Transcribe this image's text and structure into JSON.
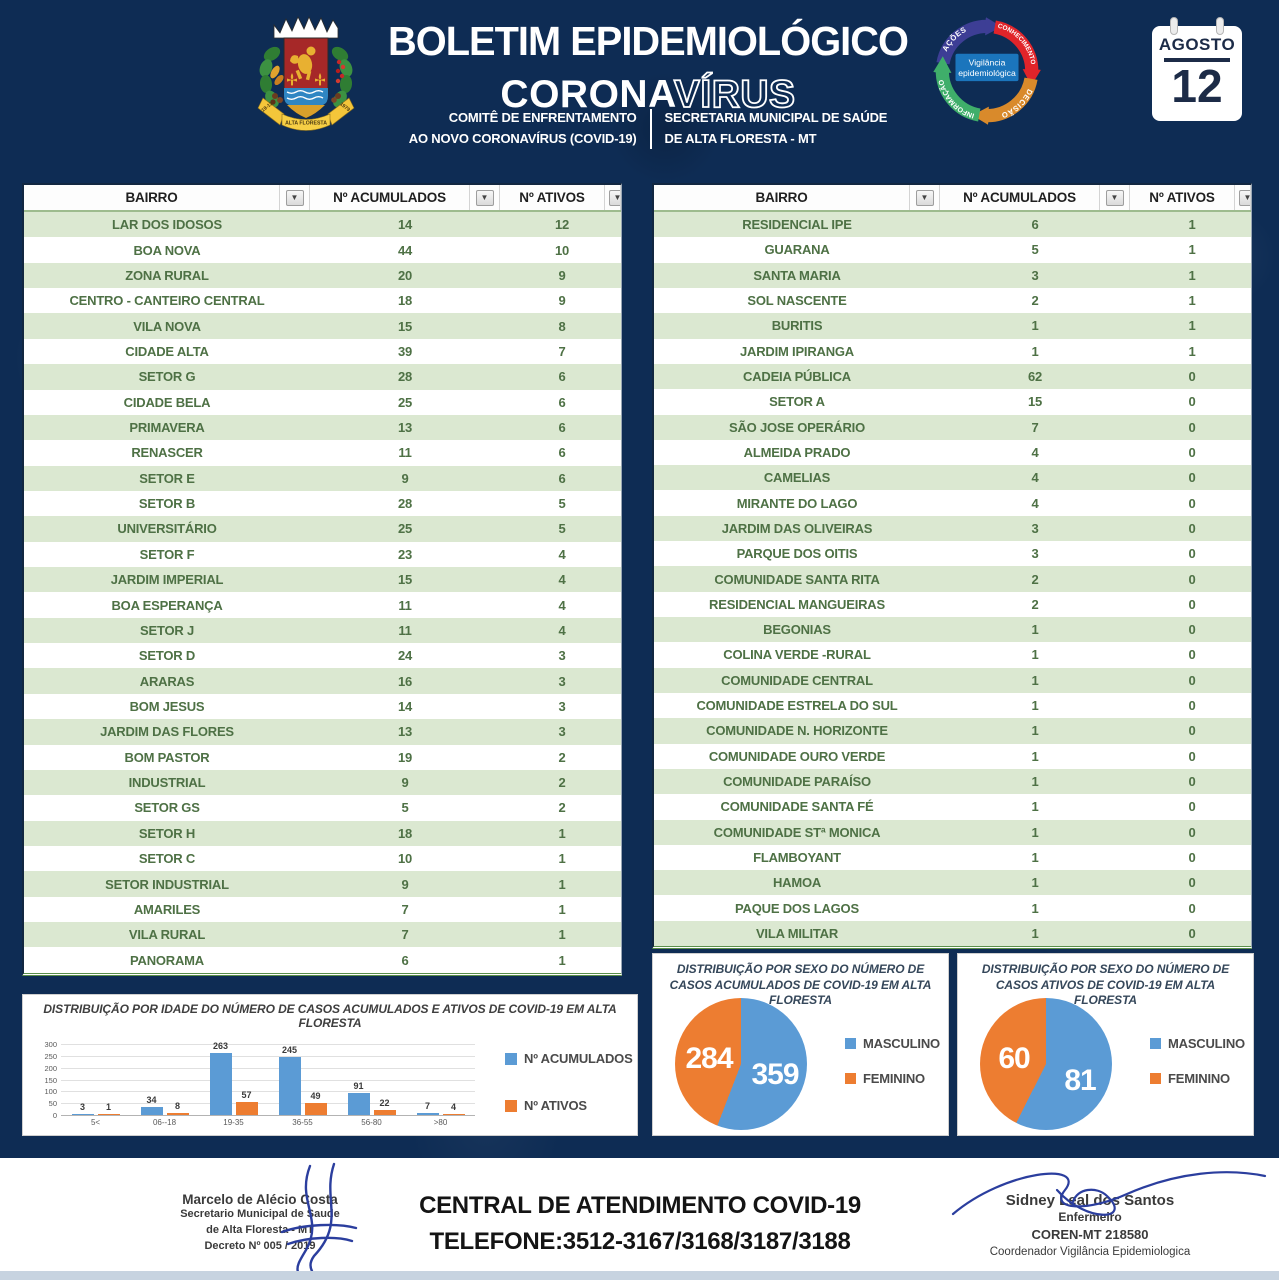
{
  "colors": {
    "background_navy": "#0e2c54",
    "table_row_green": "#dbe8d1",
    "table_text_green": "#4e7145",
    "table_border_green": "#5a8f4a",
    "accent_blue": "#5b9bd5",
    "accent_orange": "#ed7d31",
    "signature_blue": "#2b3e9e",
    "footer_strip": "#c7d3e0",
    "calendar_text": "#1c2b47"
  },
  "header": {
    "title": "BOLETIM EPIDEMIOLÓGICO",
    "subtitle_solid": "CORONA",
    "subtitle_outline": "VÍRUS",
    "committee_line1": "COMITÊ DE ENFRENTAMENTO",
    "committee_line2": "AO NOVO CORONAVÍRUS (COVID-19)",
    "secretary_line1": "SECRETARIA MUNICIPAL DE SAÚDE",
    "secretary_line2": "DE ALTA FLORESTA - MT",
    "crest": {
      "ribbon_text": "ALTA FLORESTA",
      "ribbon_left": "19-12",
      "ribbon_right": "1979"
    },
    "cycle_logo": {
      "center_line1": "Vigilância",
      "center_line2": "epidemiológica",
      "center_color": "#1b75bc",
      "arrows": [
        {
          "label": "AÇÕES",
          "color": "#3d3e95"
        },
        {
          "label": "CONHECIMENTO",
          "color": "#e1242a"
        },
        {
          "label": "DECISÃO",
          "color": "#d98a2b"
        },
        {
          "label": "INFORMAÇÃO",
          "color": "#3fae6a"
        }
      ]
    },
    "calendar": {
      "month": "AGOSTO",
      "day": "12"
    }
  },
  "tables": {
    "headers": [
      "BAIRRO",
      "Nº ACUMULADOS",
      "Nº ATIVOS"
    ],
    "filter_icon": "▼",
    "left_rows": [
      [
        "LAR DOS IDOSOS",
        "14",
        "12"
      ],
      [
        "BOA NOVA",
        "44",
        "10"
      ],
      [
        "ZONA RURAL",
        "20",
        "9"
      ],
      [
        "CENTRO - CANTEIRO CENTRAL",
        "18",
        "9"
      ],
      [
        "VILA NOVA",
        "15",
        "8"
      ],
      [
        "CIDADE ALTA",
        "39",
        "7"
      ],
      [
        "SETOR G",
        "28",
        "6"
      ],
      [
        "CIDADE BELA",
        "25",
        "6"
      ],
      [
        "PRIMAVERA",
        "13",
        "6"
      ],
      [
        "RENASCER",
        "11",
        "6"
      ],
      [
        "SETOR E",
        "9",
        "6"
      ],
      [
        "SETOR B",
        "28",
        "5"
      ],
      [
        "UNIVERSITÁRIO",
        "25",
        "5"
      ],
      [
        "SETOR F",
        "23",
        "4"
      ],
      [
        "JARDIM IMPERIAL",
        "15",
        "4"
      ],
      [
        "BOA ESPERANÇA",
        "11",
        "4"
      ],
      [
        "SETOR J",
        "11",
        "4"
      ],
      [
        "SETOR D",
        "24",
        "3"
      ],
      [
        "ARARAS",
        "16",
        "3"
      ],
      [
        "BOM JESUS",
        "14",
        "3"
      ],
      [
        "JARDIM DAS FLORES",
        "13",
        "3"
      ],
      [
        "BOM PASTOR",
        "19",
        "2"
      ],
      [
        "INDUSTRIAL",
        "9",
        "2"
      ],
      [
        "SETOR GS",
        "5",
        "2"
      ],
      [
        "SETOR H",
        "18",
        "1"
      ],
      [
        "SETOR C",
        "10",
        "1"
      ],
      [
        "SETOR INDUSTRIAL",
        "9",
        "1"
      ],
      [
        "AMARILES",
        "7",
        "1"
      ],
      [
        "VILA RURAL",
        "7",
        "1"
      ],
      [
        "PANORAMA",
        "6",
        "1"
      ]
    ],
    "right_rows": [
      [
        "RESIDENCIAL IPE",
        "6",
        "1"
      ],
      [
        "GUARANA",
        "5",
        "1"
      ],
      [
        "SANTA MARIA",
        "3",
        "1"
      ],
      [
        "SOL NASCENTE",
        "2",
        "1"
      ],
      [
        "BURITIS",
        "1",
        "1"
      ],
      [
        "JARDIM IPIRANGA",
        "1",
        "1"
      ],
      [
        "CADEIA PÚBLICA",
        "62",
        "0"
      ],
      [
        "SETOR A",
        "15",
        "0"
      ],
      [
        "SÃO JOSE OPERÁRIO",
        "7",
        "0"
      ],
      [
        "ALMEIDA PRADO",
        "4",
        "0"
      ],
      [
        "CAMELIAS",
        "4",
        "0"
      ],
      [
        "MIRANTE DO LAGO",
        "4",
        "0"
      ],
      [
        "JARDIM DAS OLIVEIRAS",
        "3",
        "0"
      ],
      [
        "PARQUE DOS OITIS",
        "3",
        "0"
      ],
      [
        "COMUNIDADE SANTA RITA",
        "2",
        "0"
      ],
      [
        "RESIDENCIAL MANGUEIRAS",
        "2",
        "0"
      ],
      [
        "BEGONIAS",
        "1",
        "0"
      ],
      [
        "COLINA VERDE -RURAL",
        "1",
        "0"
      ],
      [
        "COMUNIDADE CENTRAL",
        "1",
        "0"
      ],
      [
        "COMUNIDADE ESTRELA DO SUL",
        "1",
        "0"
      ],
      [
        "COMUNIDADE N. HORIZONTE",
        "1",
        "0"
      ],
      [
        "COMUNIDADE OURO VERDE",
        "1",
        "0"
      ],
      [
        "COMUNIDADE PARAÍSO",
        "1",
        "0"
      ],
      [
        "COMUNIDADE SANTA FÉ",
        "1",
        "0"
      ],
      [
        "COMUNIDADE STª MONICA",
        "1",
        "0"
      ],
      [
        "FLAMBOYANT",
        "1",
        "0"
      ],
      [
        "HAMOA",
        "1",
        "0"
      ],
      [
        "PAQUE DOS LAGOS",
        "1",
        "0"
      ],
      [
        "VILA MILITAR",
        "1",
        "0"
      ]
    ]
  },
  "chart_data": [
    {
      "type": "bar",
      "title": "DISTRIBUIÇÃO POR IDADE DO NÚMERO DE CASOS ACUMULADOS E ATIVOS DE COVID-19 EM ALTA FLORESTA",
      "categories": [
        "5<",
        "06--18",
        "19-35",
        "36-55",
        "56-80",
        ">80"
      ],
      "series": [
        {
          "name": "Nº ACUMULADOS",
          "color": "#5b9bd5",
          "values": [
            3,
            34,
            263,
            245,
            91,
            7
          ]
        },
        {
          "name": "Nº ATIVOS",
          "color": "#ed7d31",
          "values": [
            1,
            8,
            57,
            49,
            22,
            4
          ]
        }
      ],
      "ylim": [
        0,
        300
      ],
      "yticks": [
        0,
        50,
        100,
        150,
        200,
        250,
        300
      ],
      "grid": true,
      "legend_position": "right"
    },
    {
      "type": "pie",
      "title": "DISTRIBUIÇÃO POR SEXO DO NÚMERO DE CASOS ACUMULADOS DE COVID-19 EM ALTA FLORESTA",
      "labels": [
        "MASCULINO",
        "FEMININO"
      ],
      "values": [
        359,
        284
      ],
      "colors": [
        "#5b9bd5",
        "#ed7d31"
      ],
      "legend_position": "right"
    },
    {
      "type": "pie",
      "title": "DISTRIBUIÇÃO POR SEXO DO NÚMERO DE CASOS ATIVOS DE COVID-19 EM ALTA FLORESTA",
      "labels": [
        "MASCULINO",
        "FEMININO"
      ],
      "values": [
        81,
        60
      ],
      "colors": [
        "#5b9bd5",
        "#ed7d31"
      ],
      "legend_position": "right"
    }
  ],
  "footer": {
    "left_signatory": {
      "name": "Marcelo de Alécio Costa",
      "line2": "Secretario Municipal de Saude",
      "line3": "de Alta Floresta - MT",
      "line4": "Decreto Nº 005 / 2019"
    },
    "center_line1": "CENTRAL DE ATENDIMENTO COVID-19",
    "center_line2": "TELEFONE:3512-3167/3168/3187/3188",
    "right_signatory": {
      "name": "Sidney Leal dos Santos",
      "line2": "Enfermeiro",
      "line3": "COREN-MT 218580",
      "line4": "Coordenador Vigilância Epidemiologica"
    }
  }
}
